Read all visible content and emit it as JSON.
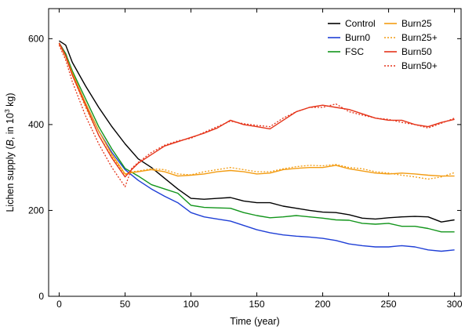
{
  "chart_data": {
    "type": "line",
    "xlabel": "Time (year)",
    "ylabel_parts": {
      "prefix": "Lichen supply (",
      "var": "B",
      "mid": ", in 10",
      "exp": "3",
      "suffix": " kg)"
    },
    "xlim": [
      -8,
      305
    ],
    "ylim": [
      0,
      670
    ],
    "xticks": [
      0,
      50,
      100,
      150,
      200,
      250,
      300
    ],
    "yticks": [
      0,
      200,
      400,
      600
    ],
    "grid": false,
    "legend_position": "top-right",
    "series": [
      {
        "name": "Control",
        "color": "#000000",
        "style": "solid",
        "x": [
          0,
          5,
          10,
          20,
          30,
          40,
          50,
          60,
          70,
          80,
          90,
          100,
          110,
          120,
          130,
          140,
          150,
          160,
          170,
          180,
          190,
          200,
          210,
          220,
          230,
          240,
          250,
          260,
          270,
          280,
          290,
          300
        ],
        "y": [
          595,
          585,
          545,
          490,
          440,
          395,
          355,
          320,
          300,
          275,
          250,
          228,
          226,
          228,
          230,
          222,
          218,
          218,
          210,
          205,
          200,
          196,
          195,
          190,
          182,
          180,
          183,
          185,
          186,
          185,
          173,
          178
        ]
      },
      {
        "name": "Burn0",
        "color": "#1f3fd6",
        "style": "solid",
        "x": [
          0,
          5,
          10,
          20,
          30,
          40,
          50,
          60,
          70,
          80,
          90,
          100,
          110,
          120,
          130,
          140,
          150,
          160,
          170,
          180,
          190,
          200,
          210,
          220,
          230,
          240,
          250,
          260,
          270,
          280,
          290,
          300
        ],
        "y": [
          590,
          565,
          520,
          450,
          385,
          335,
          295,
          270,
          250,
          233,
          218,
          195,
          185,
          180,
          175,
          165,
          155,
          148,
          143,
          140,
          138,
          135,
          130,
          122,
          118,
          115,
          115,
          118,
          115,
          108,
          105,
          108
        ]
      },
      {
        "name": "FSC",
        "color": "#12951b",
        "style": "solid",
        "x": [
          0,
          5,
          10,
          20,
          30,
          40,
          50,
          60,
          70,
          80,
          90,
          100,
          110,
          120,
          130,
          140,
          150,
          160,
          170,
          180,
          190,
          200,
          210,
          220,
          230,
          240,
          250,
          260,
          270,
          280,
          290,
          300
        ],
        "y": [
          590,
          565,
          525,
          460,
          395,
          343,
          298,
          280,
          260,
          250,
          240,
          212,
          207,
          206,
          205,
          195,
          188,
          183,
          185,
          188,
          185,
          182,
          178,
          177,
          170,
          168,
          170,
          163,
          163,
          158,
          150,
          150
        ]
      },
      {
        "name": "Burn25",
        "color": "#f39c12",
        "style": "solid",
        "x": [
          0,
          5,
          10,
          20,
          30,
          40,
          50,
          55,
          60,
          70,
          80,
          90,
          100,
          110,
          120,
          130,
          140,
          150,
          160,
          170,
          180,
          190,
          200,
          210,
          220,
          230,
          240,
          250,
          260,
          270,
          280,
          290,
          300
        ],
        "y": [
          590,
          560,
          520,
          450,
          385,
          330,
          285,
          288,
          290,
          295,
          290,
          280,
          282,
          285,
          290,
          293,
          290,
          285,
          287,
          295,
          298,
          300,
          300,
          305,
          297,
          292,
          287,
          285,
          287,
          285,
          282,
          280,
          280
        ]
      },
      {
        "name": "Burn25+",
        "color": "#f39c12",
        "style": "dotted",
        "x": [
          0,
          5,
          10,
          20,
          30,
          40,
          50,
          55,
          60,
          70,
          80,
          90,
          100,
          110,
          120,
          130,
          140,
          150,
          160,
          170,
          180,
          190,
          200,
          210,
          220,
          230,
          240,
          250,
          260,
          270,
          280,
          290,
          300
        ],
        "y": [
          588,
          555,
          515,
          440,
          375,
          325,
          283,
          290,
          292,
          297,
          295,
          285,
          283,
          290,
          295,
          300,
          295,
          290,
          290,
          297,
          302,
          305,
          304,
          307,
          300,
          297,
          290,
          287,
          282,
          278,
          273,
          278,
          288
        ]
      },
      {
        "name": "Burn50",
        "color": "#e5341a",
        "style": "solid",
        "x": [
          0,
          5,
          10,
          20,
          30,
          40,
          50,
          55,
          60,
          70,
          80,
          90,
          100,
          110,
          120,
          130,
          140,
          150,
          160,
          170,
          180,
          190,
          200,
          210,
          220,
          230,
          240,
          250,
          260,
          270,
          280,
          290,
          300
        ],
        "y": [
          590,
          560,
          515,
          445,
          375,
          322,
          278,
          295,
          310,
          330,
          350,
          360,
          370,
          380,
          392,
          410,
          400,
          395,
          390,
          410,
          430,
          440,
          445,
          440,
          435,
          425,
          415,
          410,
          410,
          400,
          395,
          405,
          412
        ]
      },
      {
        "name": "Burn50+",
        "color": "#e5341a",
        "style": "dotted",
        "x": [
          0,
          5,
          10,
          20,
          30,
          40,
          50,
          55,
          60,
          70,
          80,
          90,
          100,
          110,
          120,
          130,
          140,
          150,
          160,
          170,
          180,
          190,
          200,
          210,
          220,
          230,
          240,
          250,
          260,
          270,
          280,
          290,
          300
        ],
        "y": [
          585,
          550,
          500,
          420,
          355,
          300,
          255,
          298,
          312,
          335,
          352,
          362,
          368,
          382,
          395,
          408,
          402,
          398,
          395,
          415,
          430,
          440,
          440,
          448,
          430,
          422,
          415,
          412,
          405,
          400,
          392,
          403,
          415
        ]
      }
    ]
  }
}
